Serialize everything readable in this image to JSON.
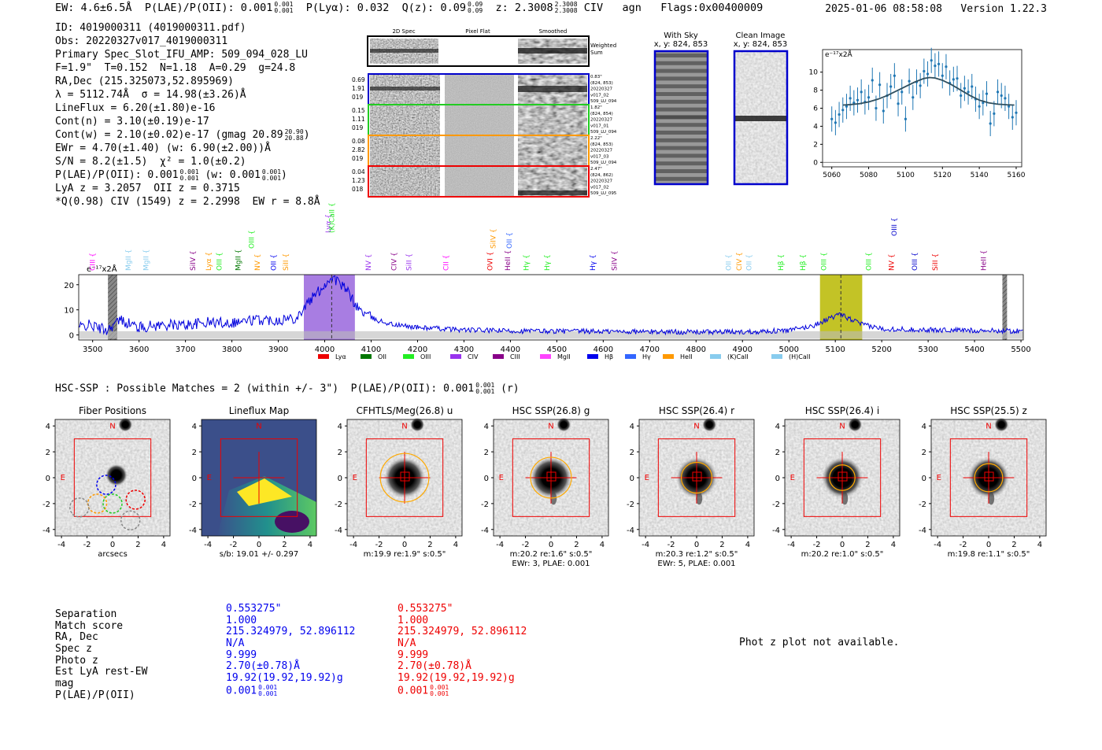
{
  "header": {
    "ew": "EW: 4.6±6.5Å",
    "plae_label": "P(LAE)/P(OII): 0.001",
    "plae_sup": "0.001",
    "plae_sub": "0.001",
    "plya": "P(Lyα): 0.032",
    "qz_label": "Q(z): 0.09",
    "qz_sup": "0.09",
    "qz_sub": "0.09",
    "z_label": "z: 2.3008",
    "z_sup": "2.3008",
    "z_sub": "2.3008",
    "line": "CIV",
    "agn": "agn",
    "flags": "Flags:0x00400009",
    "datetime": "2025-01-06 08:58:08",
    "version": "Version 1.22.3"
  },
  "info": {
    "id": "ID: 4019000311 (4019000311.pdf)",
    "obs": "Obs: 20220327v017_4019000311",
    "primary": "Primary Spec_Slot_IFU_AMP: 509_094_028_LU",
    "fit": "F=1.9\"  T=0.152  N=1.18  A=0.29  g=24.8",
    "radec": "RA,Dec (215.325073,52.895969)",
    "lambda": "λ = 5112.74Å  σ = 14.98(±3.26)Å",
    "lineflux": "LineFlux = 6.20(±1.80)e-16",
    "cont_n": "Cont(n) = 3.10(±0.19)e-17",
    "cont_w": "Cont(w) = 2.10(±0.02)e-17 (gmag 20.89",
    "cont_w_sup": "20.90",
    "cont_w_sub": "20.88",
    "ewr": "EWr = 4.70(±1.40) (w: 6.90(±2.00))Å",
    "sn": "S/N = 8.2(±1.5)  χ² = 1.0(±0.2)",
    "plae_a": "P(LAE)/P(OII): 0.001",
    "plae_a_sup": "0.001",
    "plae_a_sub": "0.001",
    "plae_b": "(w: 0.001",
    "plae_b_sup": "0.001",
    "plae_b_sub": "0.001",
    "lya_z": "LyA z = 3.2057  OII z = 0.3715",
    "civ": "*Q(0.98) CIV (1549) z = 2.2998  EW r = 8.8Å"
  },
  "spec2d": {
    "col_headers": [
      "2D Spec",
      "Pixel Flat",
      "Smoothed"
    ],
    "sum_label": "Weighted Sum",
    "rows": [
      {
        "left": [
          "0.69",
          "1.91",
          "019"
        ],
        "right": [
          "0.83\"",
          "(824, 853)",
          "20220327",
          "v017_02",
          "509_LU_094"
        ],
        "color": "#0000cc"
      },
      {
        "left": [
          "0.15",
          "1.11",
          "019"
        ],
        "right": [
          "1.82\"",
          "(824, 854)",
          "20220327",
          "v017_01",
          "509_LU_094"
        ],
        "color": "#22cc22"
      },
      {
        "left": [
          "0.08",
          "2.82",
          "019"
        ],
        "right": [
          "2.22\"",
          "(824, 853)",
          "20220327",
          "v017_03",
          "509_LU_094"
        ],
        "color": "#ff9900"
      },
      {
        "left": [
          "0.04",
          "1.23",
          "018"
        ],
        "right": [
          "2.47\"",
          "(824, 862)",
          "20220327",
          "v017_02",
          "509_LU_095"
        ],
        "color": "#ee0000"
      }
    ]
  },
  "cutouts": {
    "with_sky": "With Sky",
    "with_sky_xy": "x, y: 824, 853",
    "clean": "Clean Image",
    "clean_xy": "x, y: 824, 853"
  },
  "hsc_title": {
    "text": "HSC-SSP : Possible Matches = 2 (within +/- 3\")  P(LAE)/P(OII): 0.001",
    "sup": "0.001",
    "sub": "0.001",
    "tail": "(r)"
  },
  "image_panels": [
    {
      "title": "Fiber Positions",
      "caption1": "arcsecs",
      "caption2": ""
    },
    {
      "title": "Lineflux Map",
      "caption1": "s/b: 19.01 +/- 0.297",
      "caption2": ""
    },
    {
      "title": "CFHTLS/Meg(26.8) u",
      "caption1": "m:19.9  re:1.9\"  s:0.5\"",
      "caption2": ""
    },
    {
      "title": "HSC SSP(26.8) g",
      "caption1": "m:20.2  re:1.6\"  s:0.5\"",
      "caption2": "EWr: 3, PLAE: 0.001"
    },
    {
      "title": "HSC SSP(26.4) r",
      "caption1": "m:20.3  re:1.2\"  s:0.5\"",
      "caption2": "EWr: 5, PLAE: 0.001"
    },
    {
      "title": "HSC SSP(26.4) i",
      "caption1": "m:20.2  re:1.0\"  s:0.5\"",
      "caption2": ""
    },
    {
      "title": "HSC SSP(25.5) z",
      "caption1": "m:19.8  re:1.1\"  s:0.5\"",
      "caption2": ""
    }
  ],
  "match_table": {
    "labels": [
      "Separation",
      "Match score",
      "RA, Dec",
      "Spec z",
      "Photo z",
      "Est LyA rest-EW",
      "mag",
      "P(LAE)/P(OII)"
    ],
    "blue": [
      "0.553275\"",
      "1.000",
      "215.324979, 52.896112",
      "N/A",
      "9.999",
      "2.70(±0.78)Å",
      "19.92(19.92,19.92)g",
      "0.001"
    ],
    "red": [
      "0.553275\"",
      "1.000",
      "215.324979, 52.896112",
      "N/A",
      "9.999",
      "2.70(±0.78)Å",
      "19.92(19.92,19.92)g",
      "0.001"
    ],
    "plae_sup": "0.001",
    "plae_sub": "0.001",
    "blue_color": "#0000ee",
    "red_color": "#ee0000"
  },
  "photz_msg": "Phot z plot not available.",
  "chart_data": [
    {
      "type": "line",
      "name": "zoom-spectrum",
      "ylabel": "e⁻¹⁷x2Å",
      "xlim": [
        5055,
        5163
      ],
      "ylim": [
        -0.5,
        12.5
      ],
      "xticks": [
        5060,
        5080,
        5100,
        5120,
        5140,
        5160
      ],
      "yticks": [
        0,
        2,
        4,
        6,
        8,
        10
      ],
      "x": [
        5060,
        5062,
        5064,
        5066,
        5068,
        5070,
        5072,
        5074,
        5076,
        5078,
        5080,
        5082,
        5084,
        5086,
        5088,
        5090,
        5092,
        5094,
        5096,
        5098,
        5100,
        5102,
        5104,
        5106,
        5108,
        5110,
        5112,
        5114,
        5116,
        5118,
        5120,
        5122,
        5124,
        5126,
        5128,
        5130,
        5132,
        5134,
        5136,
        5138,
        5140,
        5142,
        5144,
        5146,
        5148,
        5150,
        5152,
        5154,
        5156,
        5158,
        5160
      ],
      "y": [
        4.8,
        4.4,
        5.3,
        5.8,
        6.2,
        7.1,
        6.6,
        6.9,
        7.8,
        6.7,
        7.2,
        9.1,
        6.0,
        8.6,
        5.7,
        7.4,
        8.4,
        9.6,
        6.5,
        7.8,
        4.8,
        9.0,
        7.2,
        8.9,
        8.5,
        10.1,
        9.8,
        11.3,
        10.7,
        10.9,
        9.6,
        10.6,
        8.8,
        9.2,
        9.3,
        7.4,
        8.2,
        7.8,
        8.4,
        7.0,
        6.2,
        6.6,
        7.6,
        4.3,
        5.4,
        7.8,
        7.4,
        7.1,
        6.2,
        5.0,
        5.5
      ],
      "fit_x": [
        5066,
        5070,
        5075,
        5080,
        5085,
        5090,
        5095,
        5100,
        5105,
        5110,
        5113,
        5116,
        5120,
        5125,
        5130,
        5135,
        5140,
        5145,
        5150,
        5155,
        5159
      ],
      "fit_y": [
        6.35,
        6.4,
        6.5,
        6.7,
        7.0,
        7.4,
        7.9,
        8.4,
        8.9,
        9.3,
        9.4,
        9.35,
        9.1,
        8.6,
        8.0,
        7.4,
        6.9,
        6.6,
        6.45,
        6.38,
        6.35
      ],
      "yerr": 1.4
    },
    {
      "type": "line",
      "name": "full-spectrum",
      "ylabel": "e⁻¹⁷x2Å",
      "xlim": [
        3470,
        5505
      ],
      "ylim": [
        -2,
        24
      ],
      "xticks": [
        3500,
        3600,
        3700,
        3800,
        3900,
        4000,
        4100,
        4200,
        4300,
        4400,
        4500,
        4600,
        4700,
        4800,
        4900,
        5000,
        5100,
        5200,
        5300,
        5400,
        5500
      ],
      "yticks": [
        0,
        10,
        20
      ],
      "highlight_regions": [
        {
          "x0": 3955,
          "x1": 4065,
          "color": "#9966dd"
        },
        {
          "x0": 5067,
          "x1": 5158,
          "color": "#b8b800"
        }
      ],
      "dashed_lines": [
        4015,
        5112
      ],
      "masked_regions": [
        {
          "x0": 3533,
          "x1": 3553
        },
        {
          "x0": 5460,
          "x1": 5470
        }
      ],
      "anchors": [
        [
          3470,
          3
        ],
        [
          3490,
          4
        ],
        [
          3530,
          2
        ],
        [
          3560,
          6
        ],
        [
          3600,
          3
        ],
        [
          3650,
          4
        ],
        [
          3700,
          4
        ],
        [
          3750,
          5
        ],
        [
          3800,
          5
        ],
        [
          3850,
          6
        ],
        [
          3900,
          6
        ],
        [
          3940,
          7
        ],
        [
          3960,
          12
        ],
        [
          3980,
          16
        ],
        [
          4000,
          20
        ],
        [
          4015,
          23
        ],
        [
          4030,
          21
        ],
        [
          4050,
          17
        ],
        [
          4070,
          11
        ],
        [
          4090,
          8
        ],
        [
          4110,
          6
        ],
        [
          4150,
          4
        ],
        [
          4200,
          3
        ],
        [
          4300,
          2
        ],
        [
          4400,
          1.6
        ],
        [
          4500,
          1.5
        ],
        [
          4600,
          1.4
        ],
        [
          4700,
          1.3
        ],
        [
          4800,
          1.2
        ],
        [
          4900,
          1.2
        ],
        [
          5000,
          1.8
        ],
        [
          5050,
          3.5
        ],
        [
          5080,
          6
        ],
        [
          5100,
          7.5
        ],
        [
          5112,
          8
        ],
        [
          5130,
          6.5
        ],
        [
          5160,
          4
        ],
        [
          5200,
          2.5
        ],
        [
          5300,
          2
        ],
        [
          5400,
          1.8
        ],
        [
          5505,
          1.5
        ]
      ],
      "legend": [
        {
          "label": "Lyα",
          "color": "#ee0000"
        },
        {
          "label": "OII",
          "color": "#007700"
        },
        {
          "label": "OIII",
          "color": "#22ee22"
        },
        {
          "label": "CIV",
          "color": "#9933ee"
        },
        {
          "label": "CIII",
          "color": "#880088"
        },
        {
          "label": "MgII",
          "color": "#ff44ff"
        },
        {
          "label": "Hβ",
          "color": "#0000ee"
        },
        {
          "label": "Hγ",
          "color": "#3366ff"
        },
        {
          "label": "HeII",
          "color": "#ff9900"
        },
        {
          "label": "(K)CaII",
          "color": "#88ccee"
        },
        {
          "label": "(H)CaII",
          "color": "#88ccee"
        }
      ],
      "line_markers": [
        {
          "label": "CIII",
          "x": 3500,
          "color": "#ff00ff",
          "tier": 0
        },
        {
          "label": "MgII",
          "x": 3577,
          "color": "#88ccee",
          "tier": 0
        },
        {
          "label": "MgII",
          "x": 3615,
          "color": "#88ccee",
          "tier": 0
        },
        {
          "label": "SiIV",
          "x": 3716,
          "color": "#880088",
          "tier": 0
        },
        {
          "label": "Lyα",
          "x": 3750,
          "color": "#ff9900",
          "tier": 0
        },
        {
          "label": "OIII",
          "x": 3773,
          "color": "#22ee22",
          "tier": 0
        },
        {
          "label": "MgII",
          "x": 3813,
          "color": "#007700",
          "tier": 0
        },
        {
          "label": "OIII",
          "x": 3842,
          "color": "#22ee22",
          "tier": 1
        },
        {
          "label": "NV",
          "x": 3855,
          "color": "#ff9900",
          "tier": 0
        },
        {
          "label": "OII",
          "x": 3890,
          "color": "#0000ee",
          "tier": 0
        },
        {
          "label": "SiII",
          "x": 3916,
          "color": "#ff9900",
          "tier": 0
        },
        {
          "label": "Lyα",
          "x": 4008,
          "color": "#9933ee",
          "tier": 2
        },
        {
          "label": "(K)CaII",
          "x": 4015,
          "color": "#22ee22",
          "tier": 2
        },
        {
          "label": "NV",
          "x": 4094,
          "color": "#9933ee",
          "tier": 0
        },
        {
          "label": "CIV",
          "x": 4149,
          "color": "#880088",
          "tier": 0
        },
        {
          "label": "SiII",
          "x": 4181,
          "color": "#9933ee",
          "tier": 0
        },
        {
          "label": "CII",
          "x": 4261,
          "color": "#ff00ff",
          "tier": 0
        },
        {
          "label": "OVI",
          "x": 4356,
          "color": "#ee0000",
          "tier": 0
        },
        {
          "label": "SiIV",
          "x": 4363,
          "color": "#ff9900",
          "tier": 1
        },
        {
          "label": "HeII",
          "x": 4394,
          "color": "#880088",
          "tier": 0
        },
        {
          "label": "OII",
          "x": 4398,
          "color": "#3366ff",
          "tier": 1
        },
        {
          "label": "Hγ",
          "x": 4434,
          "color": "#22ee22",
          "tier": 0
        },
        {
          "label": "Hγ",
          "x": 4479,
          "color": "#22ee22",
          "tier": 0
        },
        {
          "label": "Hγ",
          "x": 4577,
          "color": "#0000ee",
          "tier": 0
        },
        {
          "label": "SiIV",
          "x": 4624,
          "color": "#880088",
          "tier": 0
        },
        {
          "label": "OII",
          "x": 4870,
          "color": "#88ccee",
          "tier": 0
        },
        {
          "label": "CIV",
          "x": 4893,
          "color": "#ff9900",
          "tier": 0
        },
        {
          "label": "OII",
          "x": 4914,
          "color": "#88ccee",
          "tier": 0
        },
        {
          "label": "Hβ",
          "x": 4983,
          "color": "#22ee22",
          "tier": 0
        },
        {
          "label": "Hβ",
          "x": 5030,
          "color": "#22ee22",
          "tier": 0
        },
        {
          "label": "OIII",
          "x": 5075,
          "color": "#22ee22",
          "tier": 0
        },
        {
          "label": "OIII",
          "x": 5172,
          "color": "#22ee22",
          "tier": 0
        },
        {
          "label": "NV",
          "x": 5221,
          "color": "#ee0000",
          "tier": 0
        },
        {
          "label": "OIII",
          "x": 5227,
          "color": "#0000cc",
          "tier": 3
        },
        {
          "label": "OIII",
          "x": 5271,
          "color": "#0000cc",
          "tier": 0
        },
        {
          "label": "SiII",
          "x": 5315,
          "color": "#ee0000",
          "tier": 0
        },
        {
          "label": "HeII",
          "x": 5419,
          "color": "#880088",
          "tier": 0
        }
      ]
    },
    {
      "type": "scatter",
      "name": "image-panel-axes",
      "xlim": [
        -4.5,
        4.5
      ],
      "ylim": [
        -4.5,
        4.5
      ],
      "xticks": [
        -4,
        -2,
        0,
        2,
        4
      ],
      "yticks": [
        4,
        2,
        0,
        -2,
        -4
      ],
      "compass": [
        "N",
        "E"
      ],
      "aperture_radii_arcsec": [
        0,
        0,
        1.9,
        1.6,
        1.2,
        1.0,
        1.1
      ],
      "fiber_offsets_arcsec": [
        {
          "x": -0.5,
          "y": -0.55,
          "color": "#0000ee"
        },
        {
          "x": 0.0,
          "y": -2.0,
          "color": "#22cc22"
        },
        {
          "x": -1.2,
          "y": -2.0,
          "color": "#ff9900"
        },
        {
          "x": 1.8,
          "y": -1.7,
          "color": "#ee0000"
        },
        {
          "x": -2.6,
          "y": -2.3,
          "color": "#888888"
        },
        {
          "x": 1.4,
          "y": -3.3,
          "color": "#888888"
        }
      ]
    }
  ]
}
